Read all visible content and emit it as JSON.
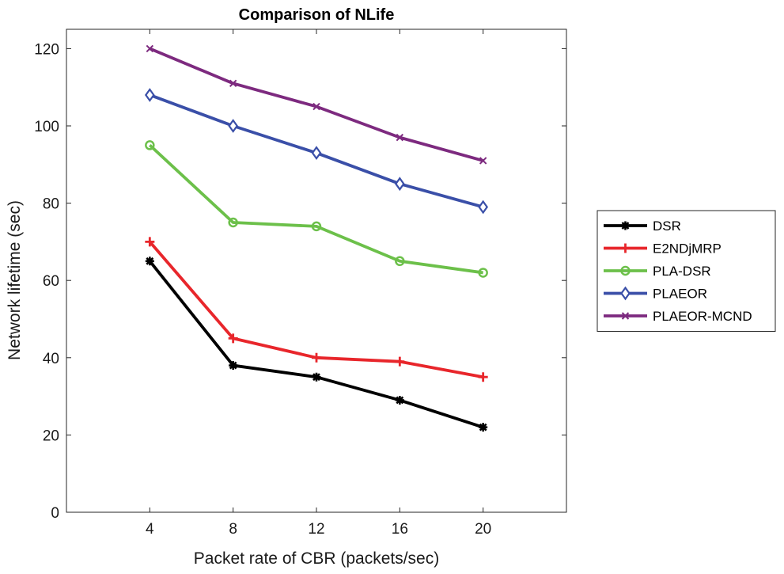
{
  "chart_data": {
    "type": "line",
    "title": "Comparison of NLife",
    "xlabel": "Packet rate of CBR (packets/sec)",
    "ylabel": "Network lifetime (sec)",
    "x": [
      4,
      8,
      12,
      16,
      20
    ],
    "xlim": [
      0,
      24
    ],
    "ylim": [
      0,
      125
    ],
    "yticks": [
      0,
      20,
      40,
      60,
      80,
      100,
      120
    ],
    "grid": false,
    "legend_position": "outside-right",
    "series": [
      {
        "name": "DSR",
        "values": [
          65,
          38,
          35,
          29,
          22
        ],
        "color": "#000000",
        "marker": "star"
      },
      {
        "name": "E2NDjMRP",
        "values": [
          70,
          45,
          40,
          39,
          35
        ],
        "color": "#e8262b",
        "marker": "plus"
      },
      {
        "name": "PLA-DSR",
        "values": [
          95,
          75,
          74,
          65,
          62
        ],
        "color": "#6cc04a",
        "marker": "circle"
      },
      {
        "name": "PLAEOR",
        "values": [
          108,
          100,
          93,
          85,
          79
        ],
        "color": "#3a4fa8",
        "marker": "diamond"
      },
      {
        "name": "PLAEOR-MCND",
        "values": [
          120,
          111,
          105,
          97,
          91
        ],
        "color": "#7d2a7f",
        "marker": "x"
      }
    ]
  }
}
